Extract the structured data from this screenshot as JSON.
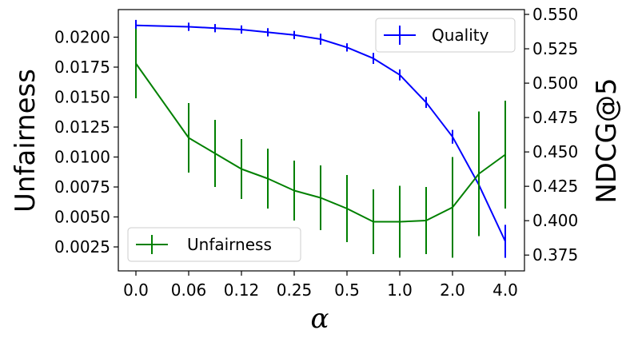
{
  "chart_data": {
    "type": "line",
    "xlabel": "α",
    "x_tick_labels": [
      "0.0",
      "0.06",
      "0.12",
      "0.25",
      "0.5",
      "1.0",
      "2.0",
      "4.0"
    ],
    "y_left": {
      "label": "Unfairness",
      "ylim": [
        0.0005,
        0.0223
      ],
      "ticks": [
        0.0025,
        0.005,
        0.0075,
        0.01,
        0.0125,
        0.015,
        0.0175,
        0.02
      ],
      "tick_labels": [
        "0.0025",
        "0.0050",
        "0.0075",
        "0.0100",
        "0.0125",
        "0.0150",
        "0.0175",
        "0.0200"
      ]
    },
    "y_right": {
      "label": "NDCG@5",
      "ylim": [
        0.3635,
        0.5535
      ],
      "ticks": [
        0.375,
        0.4,
        0.425,
        0.45,
        0.475,
        0.5,
        0.525,
        0.55
      ],
      "tick_labels": [
        "0.375",
        "0.400",
        "0.425",
        "0.450",
        "0.475",
        "0.500",
        "0.525",
        "0.550"
      ]
    },
    "series": [
      {
        "name": "Quality",
        "axis": "right",
        "color": "#0000ff",
        "x": [
          0,
          1,
          1.5,
          2,
          2.5,
          3,
          3.5,
          4,
          4.5,
          5,
          5.5,
          6,
          6.5,
          7
        ],
        "y": [
          0.542,
          0.541,
          0.54,
          0.539,
          0.537,
          0.535,
          0.532,
          0.526,
          0.518,
          0.506,
          0.486,
          0.461,
          0.426,
          0.385
        ],
        "err": [
          0.004,
          0.003,
          0.003,
          0.003,
          0.003,
          0.003,
          0.004,
          0.003,
          0.004,
          0.004,
          0.004,
          0.005,
          0.007,
          0.012
        ]
      },
      {
        "name": "Unfairness",
        "axis": "left",
        "color": "#008000",
        "x": [
          0,
          1,
          1.5,
          2,
          2.5,
          3,
          3.5,
          4,
          4.5,
          5,
          5.5,
          6,
          6.5,
          7
        ],
        "y": [
          0.0178,
          0.0116,
          0.0103,
          0.009,
          0.0082,
          0.0072,
          0.0066,
          0.0057,
          0.0046,
          0.0046,
          0.0047,
          0.0058,
          0.0086,
          0.0102
        ],
        "err": [
          0.0029,
          0.0029,
          0.0028,
          0.0025,
          0.0025,
          0.0025,
          0.0027,
          0.0028,
          0.0027,
          0.003,
          0.0028,
          0.0042,
          0.0052,
          0.0045
        ]
      }
    ],
    "legend": [
      {
        "label": "Quality",
        "position": "top-right"
      },
      {
        "label": "Unfairness",
        "position": "bottom-left"
      }
    ],
    "grid": false
  }
}
